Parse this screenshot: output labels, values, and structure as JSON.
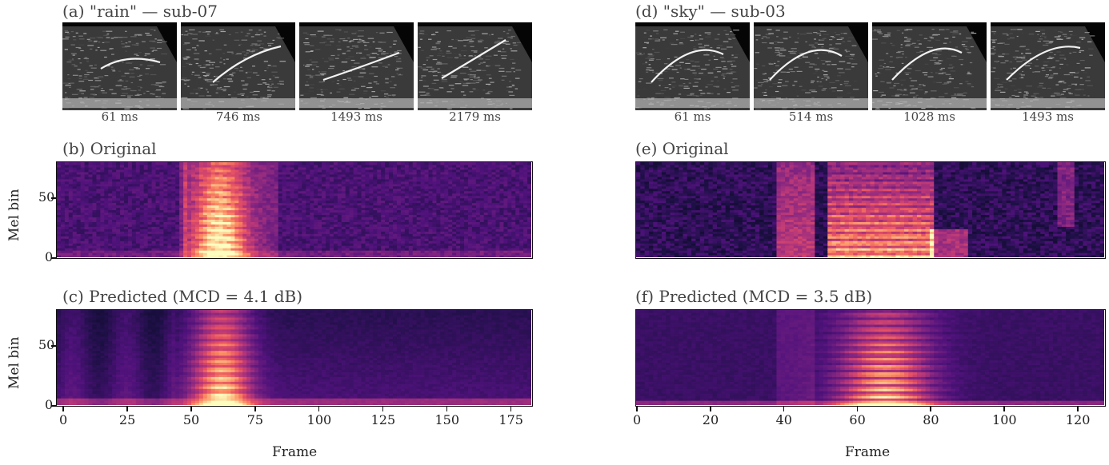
{
  "left": {
    "frames_title": "(a) \"rain\" — sub-07",
    "frame_times": [
      "61 ms",
      "746 ms",
      "1493 ms",
      "2179 ms"
    ],
    "original_title": "(b) Original",
    "predicted_title": "(c) Predicted (MCD = 4.1 dB)",
    "ylabel": "Mel bin",
    "xlabel": "Frame",
    "xticks": [
      "0",
      "25",
      "50",
      "75",
      "100",
      "125",
      "150",
      "175"
    ],
    "yticks": [
      "0",
      "50"
    ]
  },
  "right": {
    "frames_title": "(d) \"sky\" — sub-03",
    "frame_times": [
      "61 ms",
      "514 ms",
      "1028 ms",
      "1493 ms"
    ],
    "original_title": "(e) Original",
    "predicted_title": "(f) Predicted (MCD = 3.5 dB)",
    "xlabel": "Frame",
    "xticks": [
      "0",
      "20",
      "40",
      "60",
      "80",
      "100",
      "120"
    ]
  },
  "chart_data": [
    {
      "type": "heatmap",
      "title": "(b) Original",
      "ylabel": "Mel bin",
      "xlim": [
        0,
        183
      ],
      "ylim": [
        0,
        80
      ],
      "yticks": [
        0,
        50
      ],
      "colormap": "magma"
    },
    {
      "type": "heatmap",
      "title": "(c) Predicted (MCD = 4.1 dB)",
      "xlabel": "Frame",
      "ylabel": "Mel bin",
      "xlim": [
        0,
        183
      ],
      "ylim": [
        0,
        80
      ],
      "xticks": [
        0,
        25,
        50,
        75,
        100,
        125,
        150,
        175
      ],
      "yticks": [
        0,
        50
      ],
      "colormap": "magma"
    },
    {
      "type": "heatmap",
      "title": "(e) Original",
      "xlim": [
        0,
        127
      ],
      "ylim": [
        0,
        80
      ],
      "colormap": "magma"
    },
    {
      "type": "heatmap",
      "title": "(f) Predicted (MCD = 3.5 dB)",
      "xlabel": "Frame",
      "xlim": [
        0,
        127
      ],
      "ylim": [
        0,
        80
      ],
      "xticks": [
        0,
        20,
        40,
        60,
        80,
        100,
        120
      ],
      "colormap": "magma"
    }
  ]
}
